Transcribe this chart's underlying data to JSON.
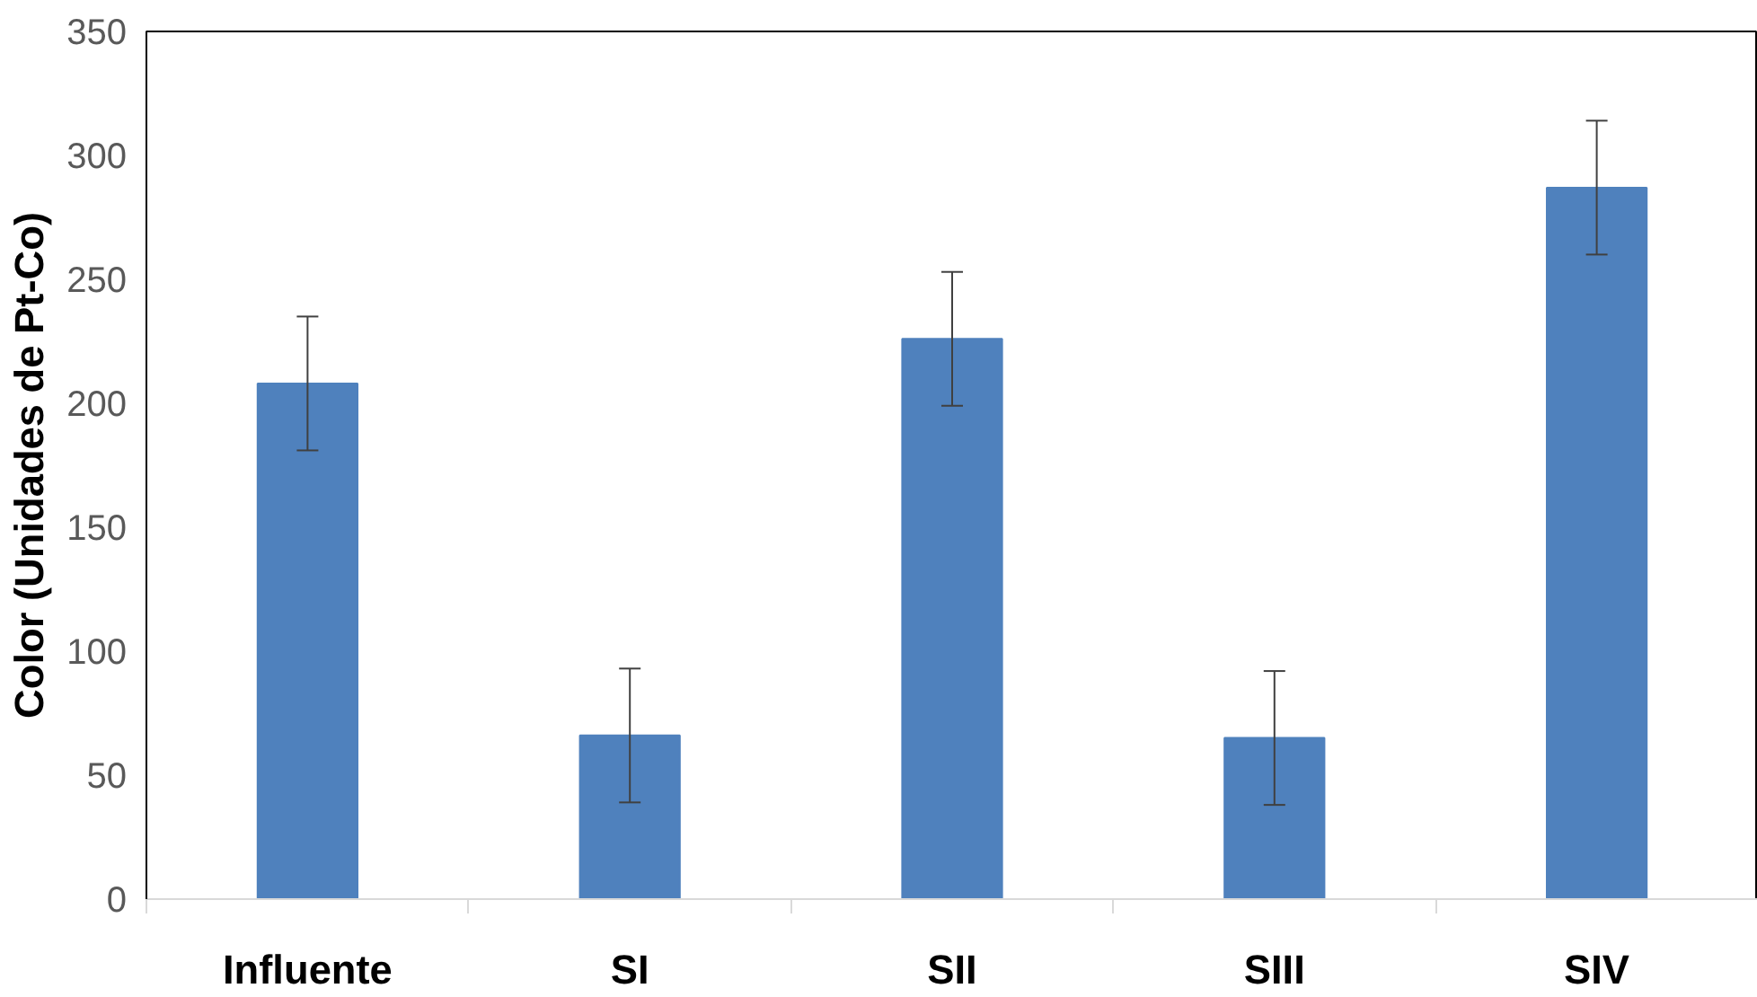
{
  "chart_data": {
    "type": "bar",
    "ylabel": "Color (Unidades de Pt-Co)",
    "categories": [
      "Influente",
      "SI",
      "SII",
      "SIII",
      "SIV"
    ],
    "values": [
      208,
      66,
      226,
      65,
      287
    ],
    "errors": [
      27,
      27,
      27,
      27,
      27
    ],
    "color": "#4f81bd",
    "ylim": [
      0,
      350
    ],
    "yticks": [
      0,
      50,
      100,
      150,
      200,
      250,
      300,
      350
    ],
    "grid": false
  }
}
